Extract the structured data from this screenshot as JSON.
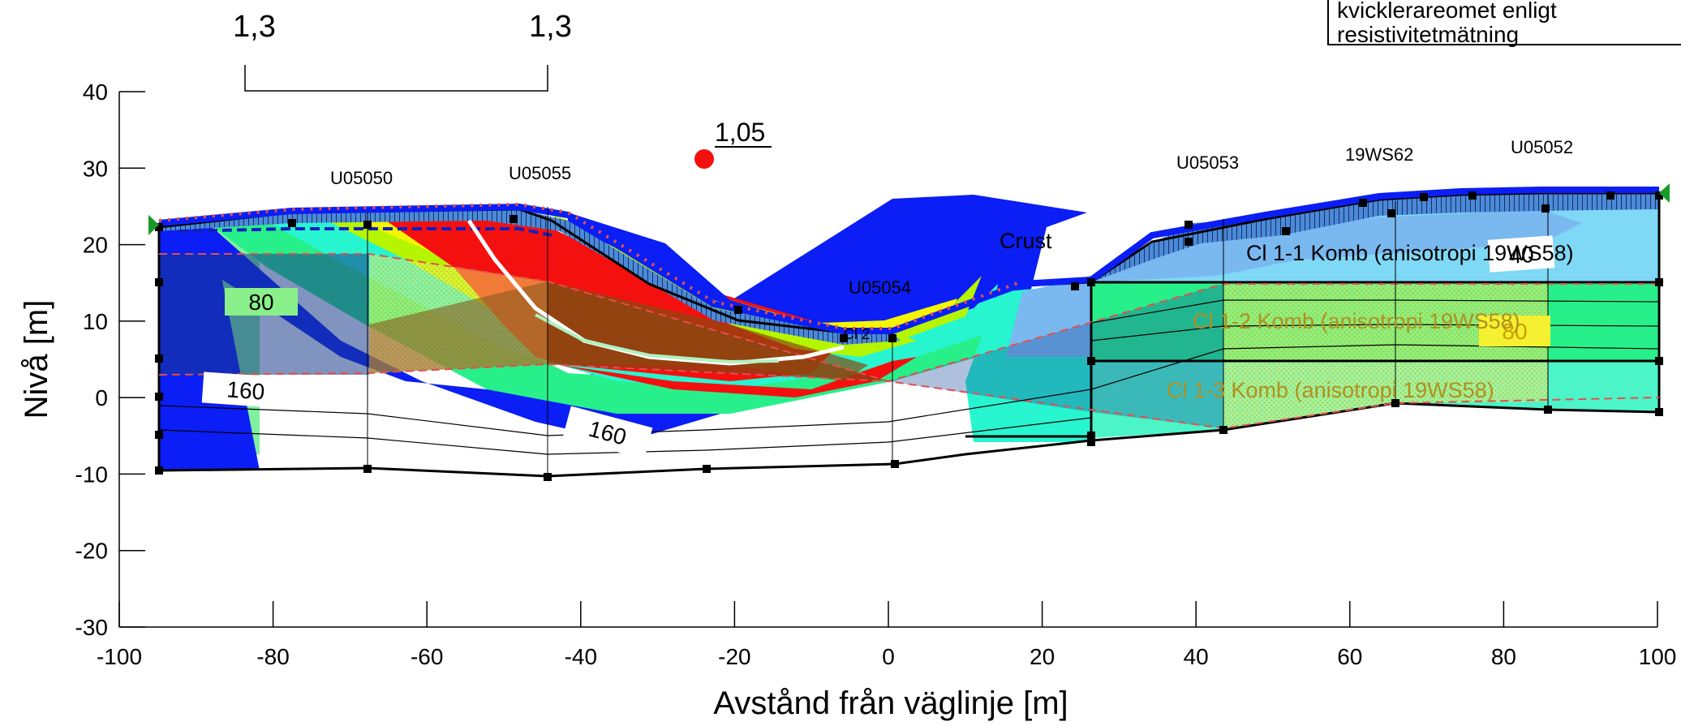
{
  "axes": {
    "xlabel": "Avstånd från väglinje [m]",
    "ylabel": "Nivå [m]",
    "x_ticks": [
      "-100",
      "-80",
      "-60",
      "-40",
      "-20",
      "0",
      "20",
      "40",
      "60",
      "80",
      "100"
    ],
    "y_ticks": [
      "40",
      "30",
      "20",
      "10",
      "0",
      "-10",
      "-20",
      "-30"
    ],
    "xlim": [
      -100,
      100
    ],
    "ylim": [
      -30,
      40
    ]
  },
  "legend": {
    "line1": "kvicklerareomet enligt",
    "line2": "resistivitetmätning"
  },
  "factors": {
    "left_a": "1,3",
    "left_b": "1,3",
    "center": "1,05"
  },
  "boreholes": [
    "U05050",
    "U05055",
    "U05054",
    "U05053",
    "19WS62",
    "U05052"
  ],
  "materials": {
    "crust": "Crust",
    "cl1": "Cl 1-1 Komb (anisotropi 19WS58)",
    "cl2": "Cl 1-2 Komb (anisotropi 19WS58)",
    "cl3": "Cl 1-3 Komb (anisotropi 19WS58)",
    "cl_small": "Cl 2"
  },
  "value_labels": {
    "v80_left": "80",
    "v160_left": "160",
    "v160_mid": "160",
    "v40_right": "40",
    "v80_right": "80"
  },
  "colors": {
    "blue": "#0a1ef5",
    "green": "#27f08a",
    "lightgreen": "#4cf5a8",
    "cyan": "#27f5d0",
    "yellowgreen": "#b6f500",
    "yellow": "#f5f500",
    "red": "#f51010",
    "lightblue": "#7fd8f5",
    "sky": "#7ab8f0"
  }
}
